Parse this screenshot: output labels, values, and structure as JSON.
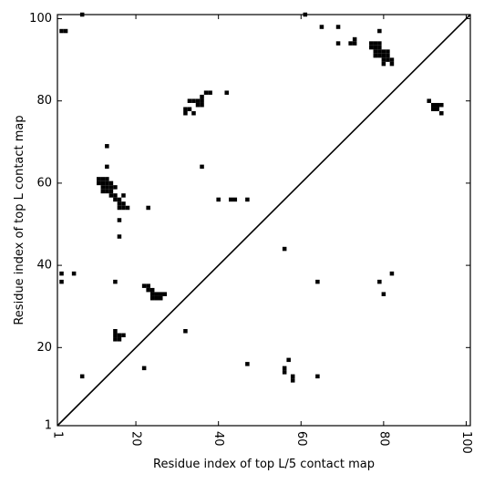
{
  "chart_data": {
    "type": "heatmap",
    "title": "",
    "xlabel": "Residue index of top L/5 contact map",
    "ylabel": "Residue index of top L contact map",
    "xlim": [
      1,
      101
    ],
    "ylim": [
      1,
      101
    ],
    "xticks": [
      {
        "value": 1,
        "label": "1"
      },
      {
        "value": 20,
        "label": "20"
      },
      {
        "value": 40,
        "label": "40"
      },
      {
        "value": 60,
        "label": "60"
      },
      {
        "value": 80,
        "label": "80"
      },
      {
        "value": 100,
        "label": "100"
      }
    ],
    "yticks": [
      {
        "value": 1,
        "label": "1"
      },
      {
        "value": 20,
        "label": "20"
      },
      {
        "value": 40,
        "label": "40"
      },
      {
        "value": 60,
        "label": "60"
      },
      {
        "value": 80,
        "label": "80"
      },
      {
        "value": 100,
        "label": "100"
      }
    ],
    "diagonal": true,
    "grid": false,
    "legend": "none",
    "cell_color": "#000000",
    "cells": [
      [
        2,
        97
      ],
      [
        3,
        97
      ],
      [
        7,
        101
      ],
      [
        61,
        101
      ],
      [
        65,
        98
      ],
      [
        69,
        98
      ],
      [
        69,
        94
      ],
      [
        72,
        94
      ],
      [
        73,
        94
      ],
      [
        73,
        95
      ],
      [
        79,
        97
      ],
      [
        77,
        94
      ],
      [
        78,
        94
      ],
      [
        79,
        94
      ],
      [
        77,
        93
      ],
      [
        78,
        93
      ],
      [
        79,
        93
      ],
      [
        80,
        92
      ],
      [
        81,
        92
      ],
      [
        78,
        92
      ],
      [
        79,
        92
      ],
      [
        78,
        91
      ],
      [
        79,
        91
      ],
      [
        80,
        91
      ],
      [
        81,
        91
      ],
      [
        80,
        90
      ],
      [
        81,
        90
      ],
      [
        82,
        90
      ],
      [
        80,
        89
      ],
      [
        82,
        89
      ],
      [
        32,
        78
      ],
      [
        32,
        77
      ],
      [
        33,
        78
      ],
      [
        34,
        77
      ],
      [
        33,
        80
      ],
      [
        34,
        80
      ],
      [
        35,
        80
      ],
      [
        35,
        79
      ],
      [
        36,
        80
      ],
      [
        36,
        79
      ],
      [
        36,
        81
      ],
      [
        37,
        82
      ],
      [
        38,
        82
      ],
      [
        42,
        82
      ],
      [
        13,
        69
      ],
      [
        13,
        64
      ],
      [
        36,
        64
      ],
      [
        11,
        61
      ],
      [
        12,
        61
      ],
      [
        13,
        61
      ],
      [
        11,
        60
      ],
      [
        12,
        60
      ],
      [
        13,
        60
      ],
      [
        14,
        60
      ],
      [
        12,
        59
      ],
      [
        13,
        59
      ],
      [
        14,
        59
      ],
      [
        15,
        59
      ],
      [
        12,
        58
      ],
      [
        13,
        58
      ],
      [
        14,
        58
      ],
      [
        14,
        57
      ],
      [
        15,
        57
      ],
      [
        15,
        56
      ],
      [
        16,
        56
      ],
      [
        17,
        57
      ],
      [
        16,
        55
      ],
      [
        17,
        55
      ],
      [
        16,
        54
      ],
      [
        17,
        54
      ],
      [
        18,
        54
      ],
      [
        16,
        51
      ],
      [
        16,
        47
      ],
      [
        23,
        54
      ],
      [
        40,
        56
      ],
      [
        43,
        56
      ],
      [
        44,
        56
      ],
      [
        47,
        56
      ],
      [
        56,
        44
      ],
      [
        2,
        38
      ],
      [
        5,
        38
      ],
      [
        2,
        36
      ],
      [
        15,
        36
      ],
      [
        22,
        35
      ],
      [
        23,
        35
      ],
      [
        23,
        34
      ],
      [
        24,
        34
      ],
      [
        24,
        33
      ],
      [
        25,
        33
      ],
      [
        26,
        33
      ],
      [
        27,
        33
      ],
      [
        24,
        32
      ],
      [
        25,
        32
      ],
      [
        26,
        32
      ],
      [
        32,
        24
      ],
      [
        15,
        24
      ],
      [
        15,
        23
      ],
      [
        16,
        23
      ],
      [
        17,
        23
      ],
      [
        15,
        22
      ],
      [
        16,
        22
      ],
      [
        7,
        13
      ],
      [
        22,
        15
      ],
      [
        47,
        16
      ],
      [
        57,
        17
      ],
      [
        56,
        15
      ],
      [
        56,
        14
      ],
      [
        58,
        13
      ],
      [
        58,
        12
      ],
      [
        64,
        13
      ],
      [
        64,
        36
      ],
      [
        79,
        36
      ],
      [
        80,
        33
      ],
      [
        82,
        38
      ],
      [
        91,
        80
      ],
      [
        92,
        79
      ],
      [
        93,
        79
      ],
      [
        92,
        78
      ],
      [
        93,
        78
      ],
      [
        94,
        79
      ],
      [
        94,
        77
      ]
    ]
  }
}
